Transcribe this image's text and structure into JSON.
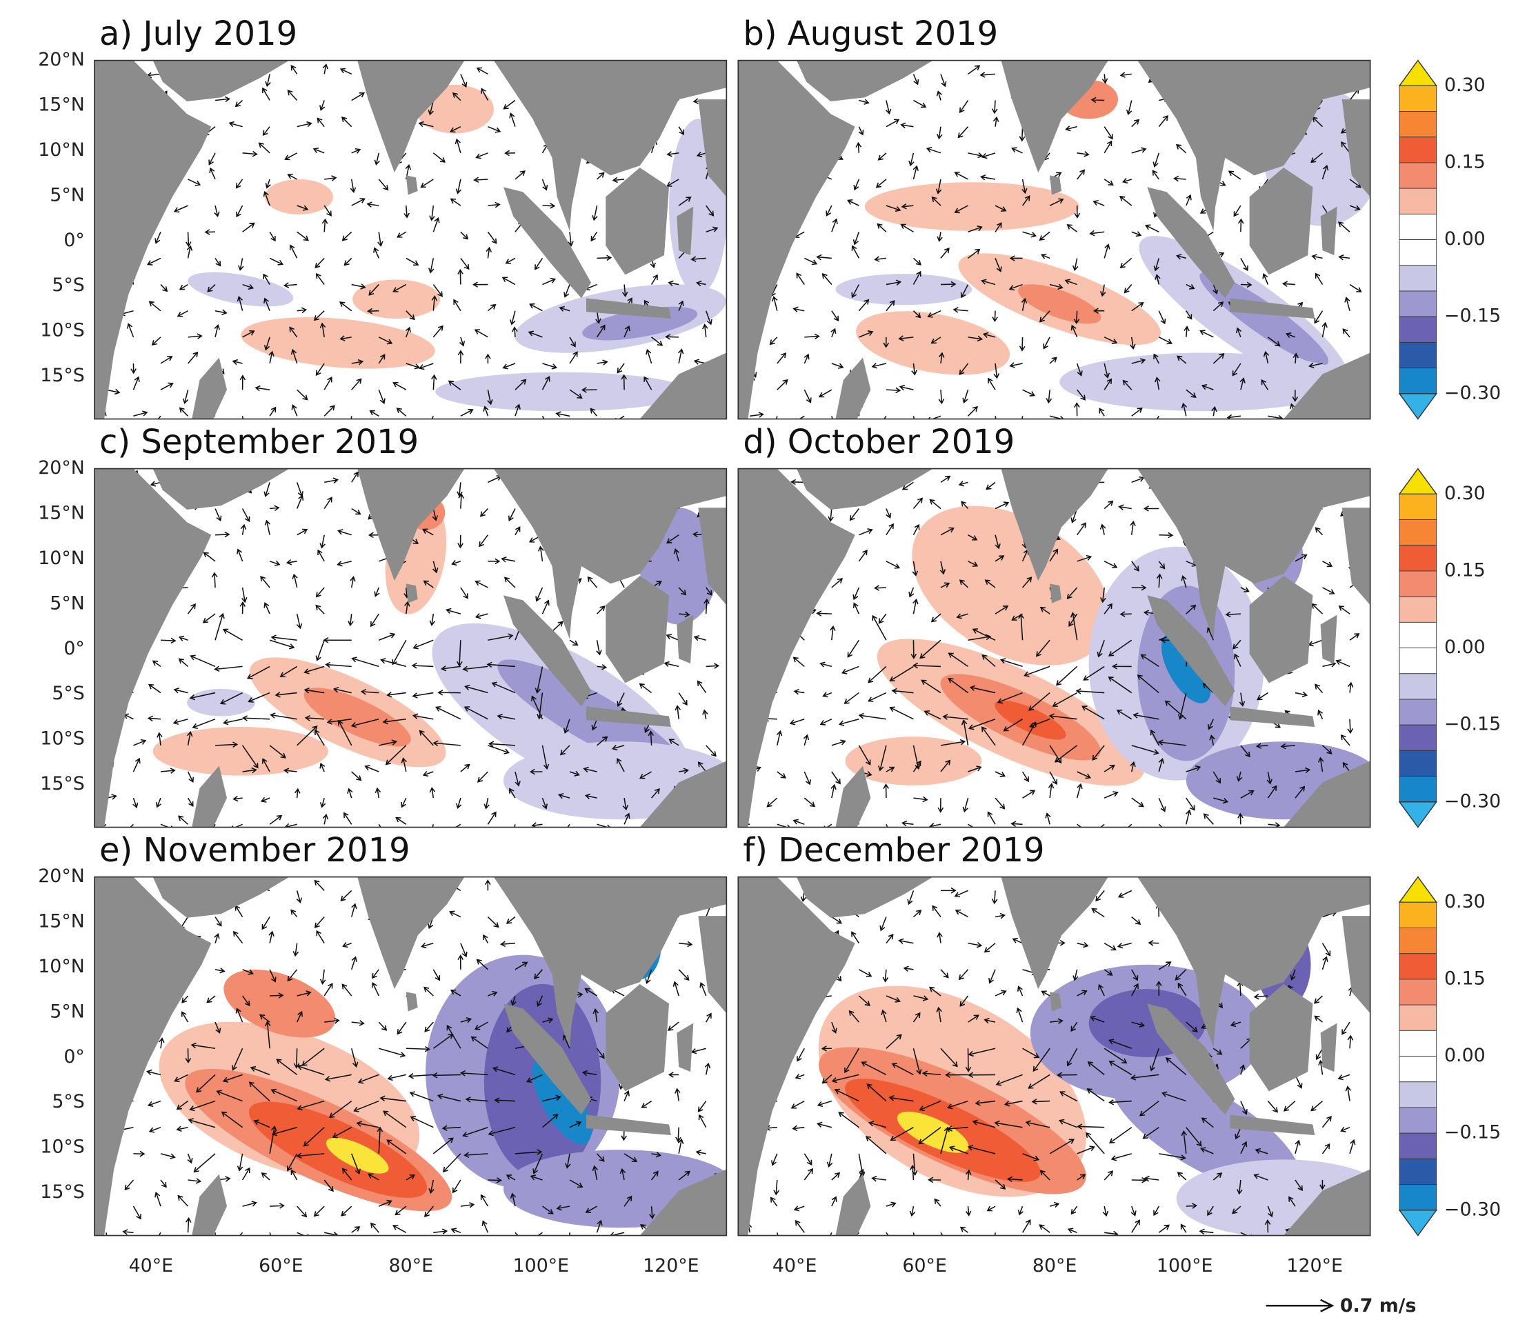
{
  "panels": [
    {
      "title": "a) July 2019"
    },
    {
      "title": "b) August 2019"
    },
    {
      "title": "c) September 2019"
    },
    {
      "title": "d) October 2019"
    },
    {
      "title": "e) November 2019"
    },
    {
      "title": "f) December 2019"
    }
  ],
  "lat_labels": [
    "20°N",
    "15°N",
    "10°N",
    "5°N",
    "0°",
    "5°S",
    "10°S",
    "15°S"
  ],
  "lon_labels": [
    "40°E",
    "60°E",
    "80°E",
    "100°E",
    "120°E"
  ],
  "colorbar": {
    "labels": [
      "0.30",
      "0.15",
      "0.00",
      "−0.15",
      "−0.30"
    ]
  },
  "reference_vector": "0.7 m/s"
}
